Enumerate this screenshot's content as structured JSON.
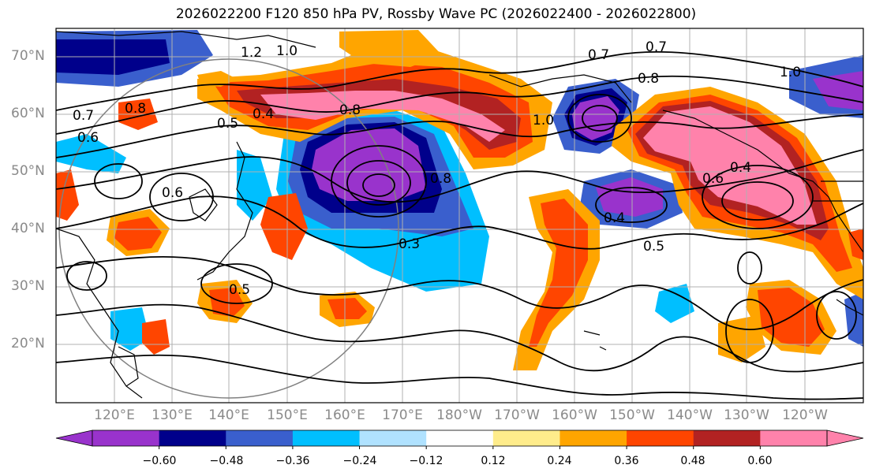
{
  "title": "2026022200 F120 850 hPa PV, Rossby Wave PC (2026022400 - 2026022800)",
  "lat_labels": [
    "70°N",
    "60°N",
    "50°N",
    "40°N",
    "30°N",
    "20°N"
  ],
  "lon_labels": [
    "120°E",
    "130°E",
    "140°E",
    "150°E",
    "160°E",
    "170°E",
    "180°W",
    "170°W",
    "160°W",
    "150°W",
    "140°W",
    "130°W",
    "120°W"
  ],
  "colorbar": {
    "labels": [
      "−0.60",
      "−0.48",
      "−0.36",
      "−0.24",
      "−0.12",
      "0.12",
      "0.24",
      "0.36",
      "0.48",
      "0.60"
    ],
    "colors": [
      "#9933cc",
      "#00008b",
      "#3a5fcd",
      "#00bfff",
      "#b0e2ff",
      "#ffffff",
      "#ffec8b",
      "#ffa500",
      "#ff4500",
      "#b22222",
      "#ff82ab"
    ]
  },
  "contour_labels": [
    "1.0",
    "1.2",
    "0.7",
    "0.6",
    "0.8",
    "0.5",
    "0.4",
    "0.7",
    "0.8",
    "0.6",
    "0.3",
    "0.5",
    "0.4",
    "0.8",
    "1.0",
    "0.7",
    "0.8",
    "1.0",
    "0.6",
    "0.4",
    "0.5"
  ],
  "colors": {
    "land_outline": "#000000",
    "grid": "#b0b0b0",
    "circle": "#808080"
  }
}
